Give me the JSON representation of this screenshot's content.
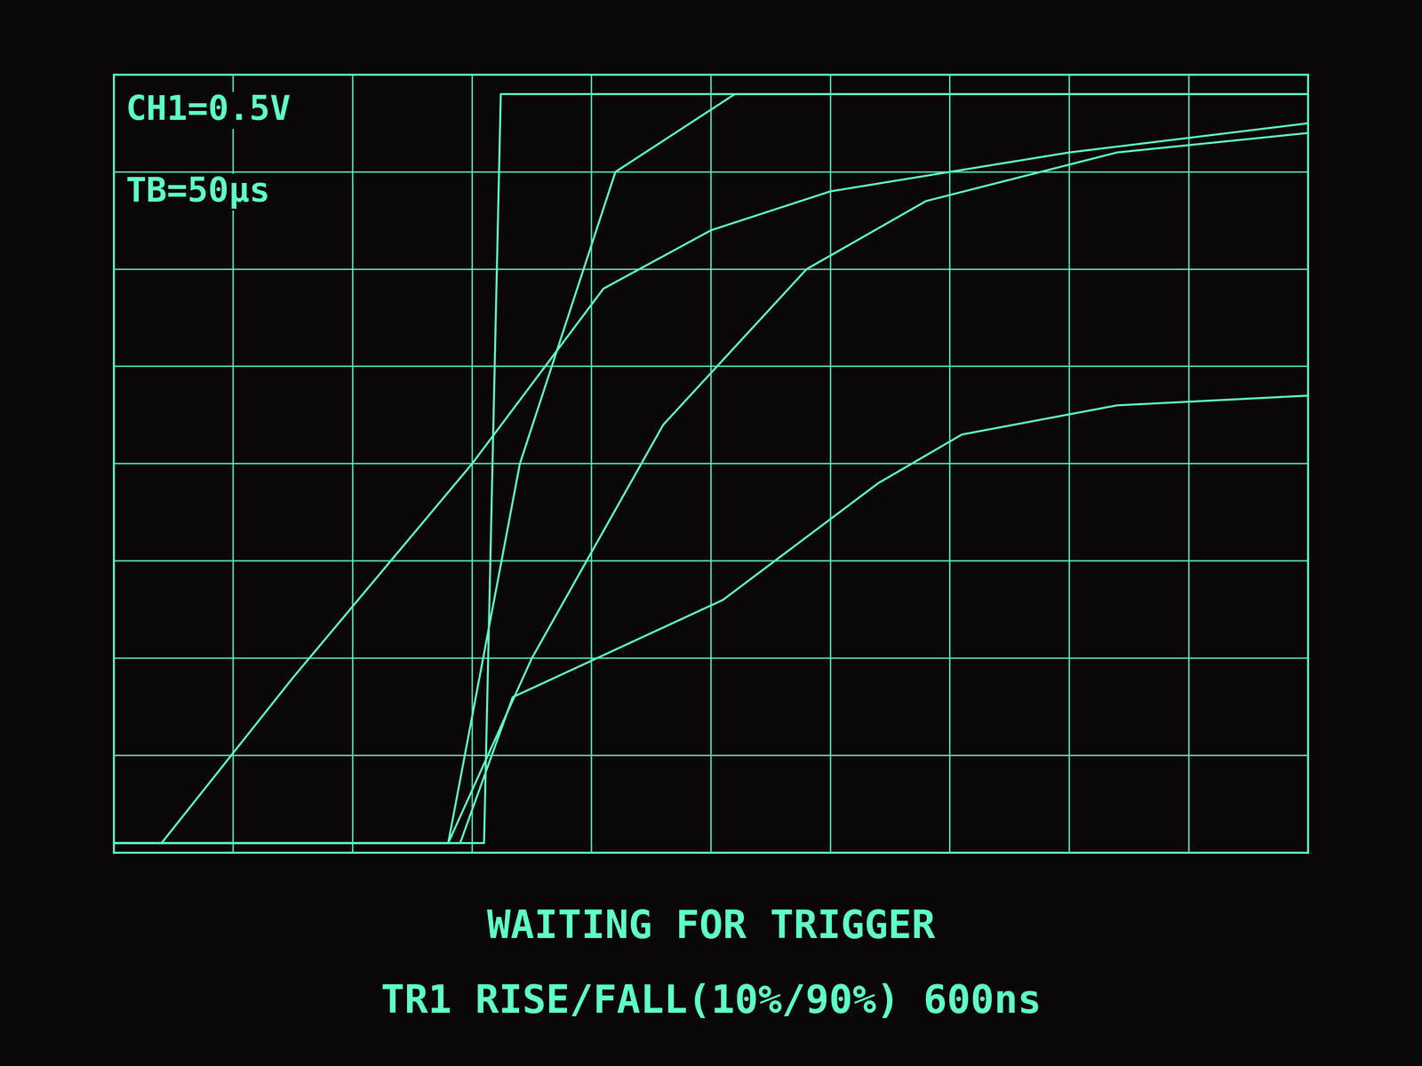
{
  "chart_data": {
    "type": "line",
    "annotations": [
      "CH1=0.5V",
      "TB=50µs",
      "WAITING FOR TRIGGER",
      "TR1 RISE/FALL(10%/90%) 600ns"
    ],
    "xlim": [
      0,
      500
    ],
    "xticks": [
      0,
      50,
      100,
      150,
      200,
      250,
      300,
      350,
      400,
      450,
      500
    ],
    "ylim": [
      0,
      4
    ],
    "yticks": [
      0,
      0.5,
      1,
      1.5,
      2,
      2.5,
      3,
      3.5,
      4
    ],
    "grid": true,
    "tick_labels": false,
    "color": "#5effc8",
    "series": [
      {
        "color": "#5effc8",
        "x": [
          0,
          155,
          162,
          500
        ],
        "values": [
          0.05,
          0.05,
          3.9,
          3.9
        ]
      },
      {
        "color": "#5effc8",
        "x": [
          0,
          20,
          75,
          150,
          205,
          250,
          300,
          400,
          500
        ],
        "values": [
          0.05,
          0.05,
          0.9,
          2.0,
          2.9,
          3.2,
          3.4,
          3.6,
          3.75
        ]
      },
      {
        "color": "#5effc8",
        "x": [
          0,
          140,
          175,
          230,
          290,
          340,
          420,
          500
        ],
        "values": [
          0.05,
          0.05,
          1.0,
          2.2,
          3.0,
          3.35,
          3.6,
          3.7
        ]
      },
      {
        "color": "#5effc8",
        "x": [
          0,
          145,
          167,
          255,
          320,
          355,
          420,
          500
        ],
        "values": [
          0.05,
          0.05,
          0.8,
          1.3,
          1.9,
          2.15,
          2.3,
          2.35
        ]
      },
      {
        "color": "#5effc8",
        "x": [
          0,
          140,
          170,
          210,
          260,
          500
        ],
        "values": [
          0.05,
          0.05,
          2.0,
          3.5,
          3.9,
          3.9
        ]
      }
    ]
  }
}
